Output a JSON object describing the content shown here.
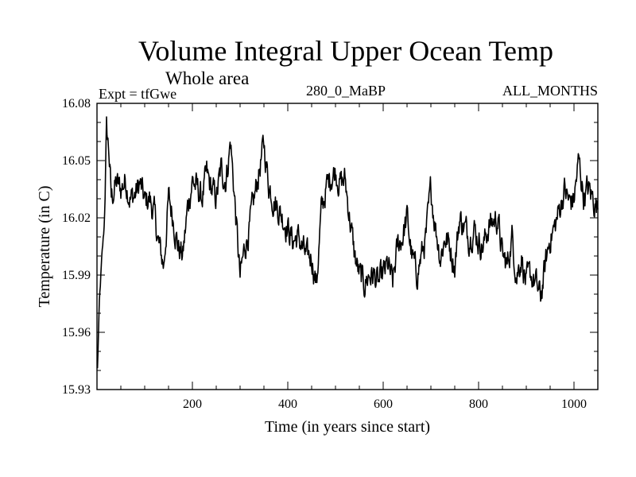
{
  "chart_data": {
    "type": "line",
    "title": "Volume Integral Upper Ocean Temp",
    "subtitle": "Whole area",
    "expt_label": "Expt = tfGwe",
    "period_label": "280_0_MaBP",
    "season_label": "ALL_MONTHS",
    "xlabel": "Time (in years since start)",
    "ylabel": "Temperature (in C)",
    "xlim": [
      0,
      1050
    ],
    "ylim": [
      15.93,
      16.08
    ],
    "x_ticks": [
      200,
      400,
      600,
      800,
      1000
    ],
    "x_tick_labels": [
      "200",
      "400",
      "600",
      "800",
      "1000"
    ],
    "y_ticks": [
      15.93,
      15.96,
      15.99,
      16.02,
      16.05,
      16.08
    ],
    "y_tick_labels": [
      "15.93",
      "15.96",
      "15.99",
      "16.02",
      "16.05",
      "16.08"
    ],
    "grid": false,
    "series": [
      {
        "name": "Volume integral upper ocean temperature",
        "anchors_x": [
          0,
          5,
          10,
          15,
          20,
          25,
          30,
          40,
          50,
          60,
          70,
          80,
          90,
          100,
          110,
          120,
          130,
          140,
          150,
          160,
          170,
          180,
          190,
          200,
          210,
          220,
          230,
          240,
          250,
          260,
          270,
          280,
          290,
          300,
          310,
          320,
          330,
          340,
          350,
          360,
          370,
          380,
          390,
          400,
          410,
          420,
          430,
          440,
          450,
          460,
          470,
          480,
          490,
          500,
          510,
          520,
          530,
          540,
          550,
          560,
          570,
          580,
          590,
          600,
          610,
          620,
          630,
          640,
          650,
          660,
          670,
          680,
          690,
          700,
          710,
          720,
          730,
          740,
          750,
          760,
          770,
          780,
          790,
          800,
          810,
          820,
          830,
          840,
          850,
          860,
          870,
          880,
          890,
          900,
          910,
          920,
          930,
          940,
          950,
          960,
          970,
          980,
          990,
          1000,
          1010,
          1020,
          1030,
          1040,
          1050
        ],
        "anchors_y": [
          15.932,
          15.975,
          15.998,
          16.015,
          16.066,
          16.055,
          16.03,
          16.038,
          16.035,
          16.04,
          16.03,
          16.032,
          16.038,
          16.028,
          16.03,
          16.022,
          16.005,
          15.995,
          16.03,
          16.02,
          16.005,
          16.0,
          16.025,
          16.04,
          16.035,
          16.03,
          16.042,
          16.035,
          16.03,
          16.045,
          16.04,
          16.06,
          16.025,
          15.988,
          16.005,
          16.015,
          16.03,
          16.045,
          16.058,
          16.038,
          16.03,
          16.025,
          16.02,
          16.015,
          16.008,
          16.01,
          16.005,
          15.998,
          16.0,
          15.985,
          16.022,
          16.035,
          16.042,
          16.045,
          16.038,
          16.04,
          16.02,
          16.0,
          15.99,
          15.985,
          15.99,
          15.99,
          15.985,
          15.99,
          15.995,
          15.985,
          16.005,
          16.01,
          16.02,
          16.0,
          15.99,
          16.0,
          16.01,
          16.035,
          16.015,
          16.0,
          16.01,
          16.005,
          15.995,
          16.02,
          16.015,
          16.01,
          16.015,
          16.008,
          16.005,
          16.015,
          16.018,
          16.02,
          16.0,
          15.995,
          16.01,
          15.99,
          16.0,
          15.985,
          15.99,
          15.985,
          15.978,
          15.995,
          16.01,
          16.015,
          16.025,
          16.035,
          16.028,
          16.03,
          16.05,
          16.032,
          16.035,
          16.03,
          16.025
        ],
        "values_note": "Annual series x = 1..1050; y sampled from anchors with interannual variability",
        "color": "#000000"
      }
    ]
  }
}
